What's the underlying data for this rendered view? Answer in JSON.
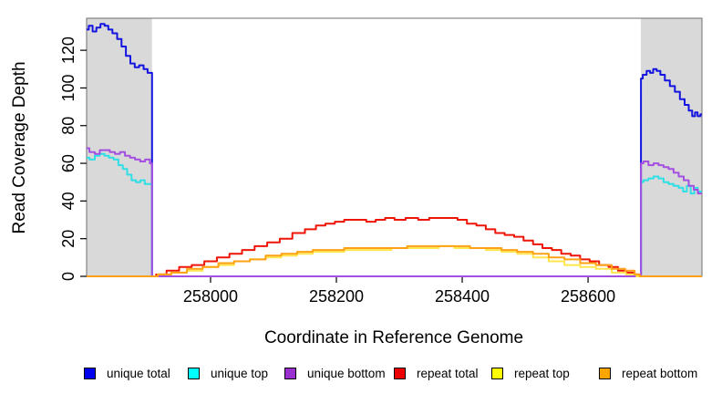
{
  "chart_data": {
    "type": "line",
    "title": "",
    "xlabel": "Coordinate in Reference Genome",
    "ylabel": "Read Coverage Depth",
    "xlim": [
      257803,
      258781
    ],
    "ylim": [
      0,
      137
    ],
    "x_ticks": [
      258000,
      258200,
      258400,
      258600
    ],
    "y_ticks": [
      0,
      20,
      40,
      60,
      80,
      100,
      120
    ],
    "grid": false,
    "legend_position": "bottom",
    "shade_color": "#d9d9d9",
    "box_color": "#6e6e6e",
    "shaded_regions": [
      {
        "x0": 257803,
        "x1": 257907
      },
      {
        "x0": 258684,
        "x1": 258781
      }
    ],
    "series": [
      {
        "name": "unique total",
        "color": "#1414e0",
        "points": [
          [
            257803,
            131
          ],
          [
            257810,
            133
          ],
          [
            257815,
            130
          ],
          [
            257822,
            132
          ],
          [
            257828,
            134
          ],
          [
            257835,
            133
          ],
          [
            257840,
            131
          ],
          [
            257848,
            129
          ],
          [
            257855,
            126
          ],
          [
            257862,
            122
          ],
          [
            257869,
            117
          ],
          [
            257876,
            113
          ],
          [
            257883,
            111
          ],
          [
            257890,
            112
          ],
          [
            257897,
            110
          ],
          [
            257903,
            108
          ],
          [
            257907,
            108
          ],
          [
            257907,
            0
          ],
          [
            258684,
            0
          ],
          [
            258684,
            105
          ],
          [
            258690,
            107
          ],
          [
            258696,
            109
          ],
          [
            258701,
            108
          ],
          [
            258706,
            110
          ],
          [
            258712,
            109
          ],
          [
            258718,
            107
          ],
          [
            258726,
            104
          ],
          [
            258734,
            101
          ],
          [
            258742,
            98
          ],
          [
            258750,
            94
          ],
          [
            258757,
            91
          ],
          [
            258763,
            88
          ],
          [
            258768,
            85
          ],
          [
            258772,
            87
          ],
          [
            258776,
            85
          ],
          [
            258781,
            86
          ]
        ]
      },
      {
        "name": "unique top",
        "color": "#2ee0e6",
        "points": [
          [
            257803,
            63
          ],
          [
            257812,
            62
          ],
          [
            257820,
            64
          ],
          [
            257828,
            65
          ],
          [
            257835,
            64
          ],
          [
            257842,
            63
          ],
          [
            257850,
            62
          ],
          [
            257857,
            59
          ],
          [
            257864,
            57
          ],
          [
            257871,
            54
          ],
          [
            257878,
            51
          ],
          [
            257885,
            50
          ],
          [
            257892,
            51
          ],
          [
            257899,
            49
          ],
          [
            257907,
            49
          ],
          [
            257907,
            0
          ],
          [
            258684,
            0
          ],
          [
            258684,
            50
          ],
          [
            258692,
            51
          ],
          [
            258700,
            52
          ],
          [
            258708,
            53
          ],
          [
            258716,
            52
          ],
          [
            258724,
            50
          ],
          [
            258732,
            49
          ],
          [
            258740,
            48
          ],
          [
            258748,
            47
          ],
          [
            258754,
            45
          ],
          [
            258760,
            48
          ],
          [
            258766,
            44
          ],
          [
            258772,
            47
          ],
          [
            258777,
            45
          ],
          [
            258781,
            45
          ]
        ]
      },
      {
        "name": "unique bottom",
        "color": "#a44fe0",
        "points": [
          [
            257803,
            68
          ],
          [
            257812,
            66
          ],
          [
            257820,
            65
          ],
          [
            257828,
            67
          ],
          [
            257836,
            67
          ],
          [
            257844,
            66
          ],
          [
            257852,
            65
          ],
          [
            257860,
            66
          ],
          [
            257868,
            64
          ],
          [
            257876,
            63
          ],
          [
            257884,
            62
          ],
          [
            257892,
            61
          ],
          [
            257900,
            62
          ],
          [
            257907,
            60
          ],
          [
            257907,
            0
          ],
          [
            258684,
            0
          ],
          [
            258684,
            60
          ],
          [
            258692,
            61
          ],
          [
            258700,
            59
          ],
          [
            258708,
            60
          ],
          [
            258716,
            59
          ],
          [
            258724,
            58
          ],
          [
            258732,
            57
          ],
          [
            258740,
            55
          ],
          [
            258748,
            53
          ],
          [
            258756,
            51
          ],
          [
            258764,
            48
          ],
          [
            258772,
            46
          ],
          [
            258777,
            44
          ],
          [
            258781,
            44
          ]
        ]
      },
      {
        "name": "repeat total",
        "color": "#ee1507",
        "points": [
          [
            257803,
            0
          ],
          [
            257907,
            0
          ],
          [
            257920,
            1
          ],
          [
            257940,
            3
          ],
          [
            257960,
            5
          ],
          [
            257980,
            6
          ],
          [
            258000,
            8
          ],
          [
            258020,
            10
          ],
          [
            258040,
            12
          ],
          [
            258060,
            14
          ],
          [
            258080,
            16
          ],
          [
            258100,
            18
          ],
          [
            258120,
            20
          ],
          [
            258140,
            23
          ],
          [
            258160,
            25
          ],
          [
            258175,
            27
          ],
          [
            258190,
            28
          ],
          [
            258205,
            29
          ],
          [
            258220,
            30
          ],
          [
            258240,
            30
          ],
          [
            258255,
            29
          ],
          [
            258270,
            30
          ],
          [
            258285,
            31
          ],
          [
            258300,
            30
          ],
          [
            258320,
            31
          ],
          [
            258340,
            30
          ],
          [
            258355,
            31
          ],
          [
            258370,
            31
          ],
          [
            258385,
            31
          ],
          [
            258400,
            30
          ],
          [
            258415,
            28
          ],
          [
            258430,
            27
          ],
          [
            258445,
            25
          ],
          [
            258460,
            23
          ],
          [
            258475,
            22
          ],
          [
            258490,
            21
          ],
          [
            258505,
            19
          ],
          [
            258520,
            17
          ],
          [
            258535,
            15
          ],
          [
            258550,
            14
          ],
          [
            258565,
            12
          ],
          [
            258580,
            11
          ],
          [
            258595,
            9
          ],
          [
            258610,
            8
          ],
          [
            258625,
            6
          ],
          [
            258640,
            5
          ],
          [
            258655,
            3
          ],
          [
            258668,
            2
          ],
          [
            258678,
            1
          ],
          [
            258684,
            0
          ],
          [
            258781,
            0
          ]
        ]
      },
      {
        "name": "repeat top",
        "color": "#ffe64d",
        "points": [
          [
            257803,
            0
          ],
          [
            257907,
            0
          ],
          [
            257925,
            1
          ],
          [
            257950,
            2
          ],
          [
            257975,
            3
          ],
          [
            258000,
            5
          ],
          [
            258025,
            6
          ],
          [
            258050,
            8
          ],
          [
            258075,
            9
          ],
          [
            258100,
            10
          ],
          [
            258125,
            11
          ],
          [
            258150,
            12
          ],
          [
            258175,
            13
          ],
          [
            258200,
            13
          ],
          [
            258225,
            14
          ],
          [
            258250,
            14
          ],
          [
            258275,
            14
          ],
          [
            258300,
            15
          ],
          [
            258325,
            15
          ],
          [
            258350,
            15
          ],
          [
            258375,
            16
          ],
          [
            258400,
            15
          ],
          [
            258425,
            15
          ],
          [
            258450,
            14
          ],
          [
            258475,
            13
          ],
          [
            258500,
            12
          ],
          [
            258525,
            10
          ],
          [
            258550,
            8
          ],
          [
            258575,
            6
          ],
          [
            258600,
            5
          ],
          [
            258625,
            4
          ],
          [
            258650,
            2
          ],
          [
            258670,
            1
          ],
          [
            258684,
            0
          ],
          [
            258781,
            0
          ]
        ]
      },
      {
        "name": "repeat bottom",
        "color": "#ffa114",
        "points": [
          [
            257803,
            0
          ],
          [
            257907,
            0
          ],
          [
            257925,
            1
          ],
          [
            257950,
            2
          ],
          [
            257975,
            4
          ],
          [
            258000,
            5
          ],
          [
            258025,
            7
          ],
          [
            258050,
            8
          ],
          [
            258075,
            9
          ],
          [
            258100,
            11
          ],
          [
            258125,
            12
          ],
          [
            258150,
            13
          ],
          [
            258175,
            14
          ],
          [
            258200,
            14
          ],
          [
            258225,
            15
          ],
          [
            258250,
            15
          ],
          [
            258275,
            15
          ],
          [
            258300,
            15
          ],
          [
            258325,
            16
          ],
          [
            258350,
            16
          ],
          [
            258375,
            16
          ],
          [
            258400,
            16
          ],
          [
            258425,
            15
          ],
          [
            258450,
            15
          ],
          [
            258475,
            14
          ],
          [
            258500,
            13
          ],
          [
            258525,
            12
          ],
          [
            258550,
            10
          ],
          [
            258575,
            9
          ],
          [
            258600,
            7
          ],
          [
            258625,
            6
          ],
          [
            258650,
            4
          ],
          [
            258668,
            3
          ],
          [
            258680,
            1
          ],
          [
            258684,
            0
          ],
          [
            258781,
            0
          ]
        ]
      }
    ],
    "legend": [
      {
        "label": "unique total",
        "color": "#0000ee"
      },
      {
        "label": "unique top",
        "color": "#00ffff"
      },
      {
        "label": "unique bottom",
        "color": "#9b30d0"
      },
      {
        "label": "repeat total",
        "color": "#ee0000"
      },
      {
        "label": "repeat top",
        "color": "#ffff00"
      },
      {
        "label": "repeat bottom",
        "color": "#ffa500"
      }
    ]
  }
}
